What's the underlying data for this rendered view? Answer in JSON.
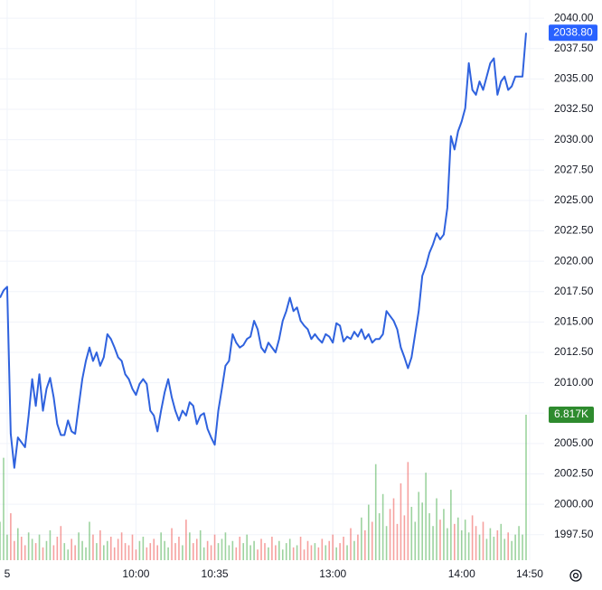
{
  "chart_data": {
    "type": "line",
    "ylim": [
      1995.4,
      2041.5
    ],
    "yticks": [
      {
        "value": 1997.5,
        "label": "1997.50"
      },
      {
        "value": 2000,
        "label": "2000.00"
      },
      {
        "value": 2002.5,
        "label": "2002.50"
      },
      {
        "value": 2005,
        "label": "2005.00"
      },
      {
        "value": 2007.5,
        "label": "2007.50"
      },
      {
        "value": 2010,
        "label": "2010.00"
      },
      {
        "value": 2012.5,
        "label": "2012.50"
      },
      {
        "value": 2015,
        "label": "2015.00"
      },
      {
        "value": 2017.5,
        "label": "2017.50"
      },
      {
        "value": 2020,
        "label": "2020.00"
      },
      {
        "value": 2022.5,
        "label": "2022.50"
      },
      {
        "value": 2025,
        "label": "2025.00"
      },
      {
        "value": 2027.5,
        "label": "2027.50"
      },
      {
        "value": 2030,
        "label": "2030.00"
      },
      {
        "value": 2032.5,
        "label": "2032.50"
      },
      {
        "value": 2035,
        "label": "2035.00"
      },
      {
        "value": 2037.5,
        "label": "2037.50"
      },
      {
        "value": 2040,
        "label": "2040.00"
      }
    ],
    "xticks": [
      {
        "value": 2,
        "label": "5"
      },
      {
        "value": 38,
        "label": "10:00"
      },
      {
        "value": 60,
        "label": "10:35"
      },
      {
        "value": 93,
        "label": "13:00"
      },
      {
        "value": 129,
        "label": "14:00"
      },
      {
        "value": 148,
        "label": "14:50"
      }
    ],
    "grid": true,
    "color": "#2f62de",
    "values": [
      2017.0,
      2017.6,
      2017.9,
      2005.8,
      2003.0,
      2005.5,
      2005.1,
      2004.7,
      2007.3,
      2010.3,
      2008.1,
      2010.7,
      2007.7,
      2009.5,
      2010.4,
      2008.8,
      2006.6,
      2005.7,
      2005.7,
      2006.9,
      2006.0,
      2005.8,
      2008.1,
      2010.3,
      2011.8,
      2012.9,
      2011.8,
      2012.5,
      2011.4,
      2012.1,
      2014.0,
      2013.6,
      2012.9,
      2012.1,
      2011.8,
      2010.7,
      2010.3,
      2009.5,
      2009.0,
      2009.9,
      2010.3,
      2009.9,
      2007.7,
      2007.3,
      2006.0,
      2007.7,
      2009.2,
      2010.3,
      2008.8,
      2007.7,
      2006.9,
      2007.7,
      2007.3,
      2008.4,
      2008.1,
      2006.6,
      2007.3,
      2007.5,
      2006.2,
      2005.5,
      2004.9,
      2007.7,
      2009.5,
      2011.4,
      2011.8,
      2014.0,
      2013.3,
      2012.9,
      2013.1,
      2013.6,
      2013.8,
      2015.1,
      2014.4,
      2012.9,
      2012.5,
      2013.3,
      2012.9,
      2012.5,
      2013.6,
      2015.1,
      2015.9,
      2017.0,
      2015.9,
      2016.2,
      2015.1,
      2014.7,
      2014.4,
      2013.6,
      2014.0,
      2013.6,
      2013.3,
      2014.0,
      2013.8,
      2013.3,
      2014.9,
      2014.7,
      2013.4,
      2013.8,
      2013.6,
      2014.2,
      2013.8,
      2014.4,
      2013.6,
      2014.0,
      2013.3,
      2013.6,
      2013.6,
      2014.0,
      2015.9,
      2015.5,
      2015.1,
      2014.4,
      2012.9,
      2012.1,
      2011.2,
      2012.1,
      2014.0,
      2015.9,
      2018.8,
      2019.6,
      2020.7,
      2021.4,
      2022.3,
      2021.8,
      2022.2,
      2024.4,
      2030.3,
      2029.2,
      2030.7,
      2031.5,
      2032.6,
      2036.3,
      2034.1,
      2033.7,
      2034.8,
      2034.1,
      2035.2,
      2036.3,
      2036.7,
      2033.7,
      2034.8,
      2035.2,
      2034.1,
      2034.4,
      2035.2,
      2035.2,
      2035.2,
      2038.8
    ],
    "last_label": "2038.80",
    "last_label_color": "#2962ff",
    "volume": [
      1800,
      4800,
      1200,
      2200,
      900,
      1500,
      1100,
      700,
      1300,
      1000,
      800,
      1200,
      600,
      900,
      1400,
      700,
      1100,
      1600,
      800,
      500,
      1000,
      700,
      1300,
      900,
      600,
      1800,
      1200,
      800,
      1400,
      700,
      900,
      1100,
      600,
      1000,
      1300,
      800,
      700,
      1200,
      500,
      900,
      1100,
      600,
      800,
      1000,
      700,
      1300,
      900,
      600,
      1500,
      800,
      1100,
      700,
      1900,
      1300,
      800,
      1000,
      1400,
      600,
      900,
      700,
      1200,
      800,
      1000,
      1300,
      700,
      900,
      600,
      1100,
      800,
      1200,
      700,
      900,
      500,
      1000,
      800,
      600,
      1100,
      700,
      900,
      500,
      800,
      1000,
      600,
      700,
      1100,
      500,
      900,
      700,
      800,
      600,
      1000,
      700,
      900,
      1200,
      600,
      800,
      1100,
      700,
      1500,
      900,
      1200,
      2000,
      1400,
      2600,
      1800,
      4500,
      2200,
      3100,
      1600,
      2400,
      2900,
      1700,
      3600,
      2100,
      4600,
      2500,
      1800,
      3200,
      2700,
      4100,
      2200,
      1600,
      2900,
      1900,
      2400,
      1500,
      3300,
      1700,
      2000,
      1400,
      1900,
      1300,
      2100,
      1600,
      1200,
      1800,
      1000,
      1500,
      1100,
      1400,
      1700,
      1000,
      1300,
      900,
      1200,
      1600,
      1200,
      6817
    ],
    "volume_label": "6.817K",
    "volume_up_color": "rgba(76,175,80,0.55)",
    "volume_down_color": "rgba(239,83,80,0.55)",
    "volume_label_color": "#2e8b2e"
  }
}
